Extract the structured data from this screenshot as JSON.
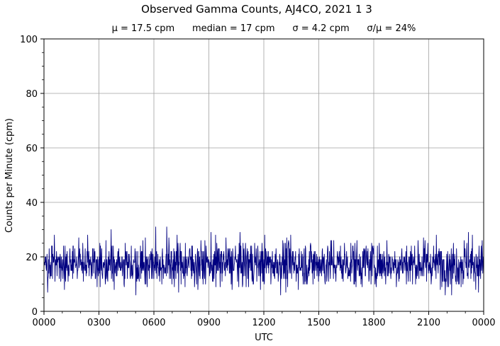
{
  "chart_data": {
    "type": "line",
    "title": "Observed Gamma Counts, AJ4CO, 2021 1 3",
    "subtitle": "μ = 17.5 cpm      median = 17 cpm      σ = 4.2 cpm      σ/μ = 24%",
    "xlabel": "UTC",
    "ylabel": "Counts per Minute (cpm)",
    "xlim_minutes": [
      0,
      1440
    ],
    "ylim": [
      0,
      100
    ],
    "x_ticks": [
      {
        "minute": 0,
        "label": "0000"
      },
      {
        "minute": 180,
        "label": "0300"
      },
      {
        "minute": 360,
        "label": "0600"
      },
      {
        "minute": 540,
        "label": "0900"
      },
      {
        "minute": 720,
        "label": "1200"
      },
      {
        "minute": 900,
        "label": "1500"
      },
      {
        "minute": 1080,
        "label": "1800"
      },
      {
        "minute": 1260,
        "label": "2100"
      },
      {
        "minute": 1440,
        "label": "0000"
      }
    ],
    "y_ticks": [
      0,
      20,
      40,
      60,
      80,
      100
    ],
    "grid": true,
    "series": [
      {
        "color": "#000080",
        "sampling": "one value per minute",
        "summary": {
          "mean": 17.5,
          "median": 17,
          "std": 4.2,
          "min": 6,
          "max": 31
        },
        "notable_points": [
          {
            "minute": 12,
            "value": 7
          },
          {
            "minute": 220,
            "value": 30
          },
          {
            "minute": 402,
            "value": 31
          },
          {
            "minute": 1335,
            "value": 6
          },
          {
            "minute": 1390,
            "value": 29
          }
        ]
      }
    ]
  }
}
